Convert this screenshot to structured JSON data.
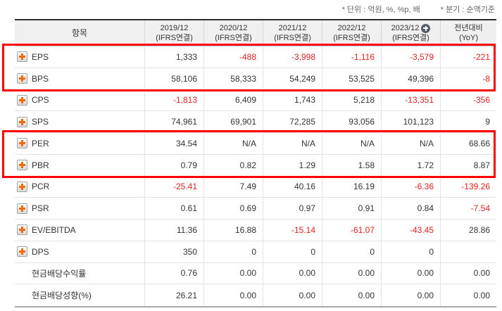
{
  "notes": {
    "unit": "* 단위 : 억원, %, %p, 배",
    "basis": "* 분기 : 순액기준"
  },
  "table": {
    "item_header": "항목",
    "columns": [
      {
        "line1": "2019/12",
        "line2": "(IFRS연결)",
        "has_plus": false
      },
      {
        "line1": "2020/12",
        "line2": "(IFRS연결)",
        "has_plus": false
      },
      {
        "line1": "2021/12",
        "line2": "(IFRS연결)",
        "has_plus": false
      },
      {
        "line1": "2022/12",
        "line2": "(IFRS연결)",
        "has_plus": false
      },
      {
        "line1": "2023/12",
        "line2": "(IFRS연결)",
        "has_plus": true
      },
      {
        "line1": "전년대비",
        "line2": "(YoY)",
        "has_plus": false
      }
    ],
    "rows": [
      {
        "label": "EPS",
        "expandable": true,
        "highlighted": true,
        "values": [
          "1,333",
          "-488",
          "-3,998",
          "-1,116",
          "-3,579",
          "-221"
        ]
      },
      {
        "label": "BPS",
        "expandable": true,
        "highlighted": true,
        "values": [
          "58,106",
          "58,333",
          "54,249",
          "53,525",
          "49,396",
          "-8"
        ]
      },
      {
        "label": "CPS",
        "expandable": true,
        "highlighted": false,
        "values": [
          "-1,813",
          "6,409",
          "1,743",
          "5,218",
          "-13,351",
          "-356"
        ]
      },
      {
        "label": "SPS",
        "expandable": true,
        "highlighted": false,
        "values": [
          "74,961",
          "69,901",
          "72,285",
          "93,056",
          "101,123",
          "9"
        ]
      },
      {
        "label": "PER",
        "expandable": true,
        "highlighted": true,
        "values": [
          "34.54",
          "N/A",
          "N/A",
          "N/A",
          "N/A",
          "68.66"
        ]
      },
      {
        "label": "PBR",
        "expandable": true,
        "highlighted": true,
        "values": [
          "0.79",
          "0.82",
          "1.29",
          "1.58",
          "1.72",
          "8.87"
        ]
      },
      {
        "label": "PCR",
        "expandable": true,
        "highlighted": false,
        "values": [
          "-25.41",
          "7.49",
          "40.16",
          "16.19",
          "-6.36",
          "-139.26"
        ]
      },
      {
        "label": "PSR",
        "expandable": true,
        "highlighted": false,
        "values": [
          "0.61",
          "0.69",
          "0.97",
          "0.91",
          "0.84",
          "-7.54"
        ]
      },
      {
        "label": "EV/EBITDA",
        "expandable": true,
        "highlighted": false,
        "values": [
          "11.36",
          "16.88",
          "-15.14",
          "-61.07",
          "-43.45",
          "28.86"
        ]
      },
      {
        "label": "DPS",
        "expandable": true,
        "highlighted": false,
        "values": [
          "350",
          "0",
          "0",
          "0",
          "0",
          ""
        ]
      },
      {
        "label": "현금배당수익률",
        "expandable": false,
        "highlighted": false,
        "values": [
          "0.76",
          "0.00",
          "0.00",
          "0.00",
          "0.00",
          "0.00"
        ]
      },
      {
        "label": "현금배당성향(%)",
        "expandable": false,
        "highlighted": false,
        "values": [
          "26.21",
          "0.00",
          "0.00",
          "0.00",
          "0.00",
          "0.00"
        ]
      }
    ]
  },
  "colors": {
    "negative_value": "#e02222",
    "highlight_border": "#ff0000",
    "expand_plus": "#f26a0a",
    "header_circle_plus": "#565d66",
    "header_background": "#f0f0f0"
  }
}
